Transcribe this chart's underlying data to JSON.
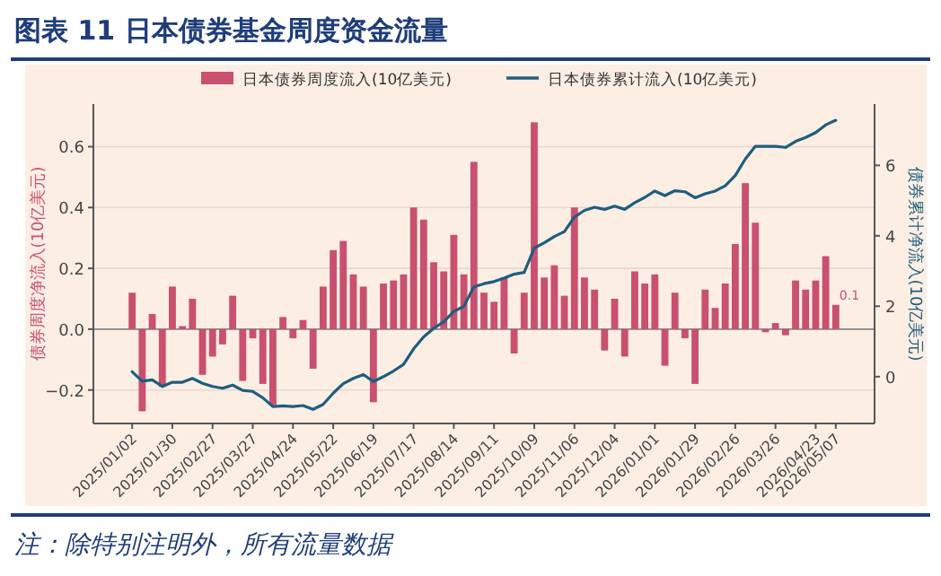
{
  "chart_data": {
    "type": "bar",
    "title": "图表 11  日本债券基金周度资金流量",
    "ylabel": "债券周度净流入(10亿美元)",
    "y2label": "债券累计净流入(10亿美元)",
    "x": [
      "2025-01-02",
      "2025-01-09",
      "2025-01-16",
      "2025-01-23",
      "2025-01-30",
      "2025-02-06",
      "2025-02-13",
      "2025-02-20",
      "2025-02-27",
      "2025-03-06",
      "2025-03-13",
      "2025-03-20",
      "2025-03-27",
      "2025-04-03",
      "2025-04-10",
      "2025-04-17",
      "2025-04-24",
      "2025-05-01",
      "2025-05-08",
      "2025-05-15",
      "2025-05-22",
      "2025-05-29",
      "2025-06-05",
      "2025-06-12",
      "2025-06-19",
      "2025-06-26",
      "2025-07-03",
      "2025-07-10",
      "2025-07-17",
      "2025-07-24",
      "2025-07-31",
      "2025-08-07",
      "2025-08-14",
      "2025-08-21",
      "2025-08-28",
      "2025-09-04",
      "2025-09-11",
      "2025-09-18",
      "2025-09-25",
      "2025-10-02",
      "2025-10-09",
      "2025-10-16",
      "2025-10-23",
      "2025-10-30",
      "2025-11-06",
      "2025-11-13",
      "2025-11-20",
      "2025-11-27",
      "2025-12-04",
      "2025-12-11",
      "2025-12-18",
      "2025-12-25",
      "2026-01-01",
      "2026-01-08",
      "2026-01-15",
      "2026-01-22",
      "2026-01-29",
      "2026-02-05",
      "2026-02-12",
      "2026-02-19",
      "2026-02-26",
      "2026-03-05",
      "2026-03-12",
      "2026-03-19",
      "2026-03-26",
      "2026-04-02",
      "2026-04-09",
      "2026-04-16",
      "2026-04-23",
      "2026-04-30",
      "2026-05-07"
    ],
    "series": [
      {
        "name": "日本债券周度流入(10亿美元)",
        "color": "#c9506f",
        "values": [
          0.12,
          -0.27,
          0.05,
          -0.19,
          0.14,
          0.01,
          0.1,
          -0.15,
          -0.09,
          -0.05,
          0.11,
          -0.17,
          -0.03,
          -0.18,
          -0.25,
          0.04,
          -0.03,
          0.03,
          -0.13,
          0.14,
          0.26,
          0.29,
          0.18,
          0.14,
          -0.24,
          0.15,
          0.16,
          0.18,
          0.4,
          0.36,
          0.22,
          0.19,
          0.31,
          0.18,
          0.55,
          0.12,
          0.09,
          0.17,
          -0.08,
          0.12,
          0.68,
          0.17,
          0.21,
          0.11,
          0.4,
          0.17,
          0.13,
          -0.07,
          0.1,
          -0.09,
          0.19,
          0.15,
          0.18,
          -0.12,
          0.12,
          -0.03,
          -0.18,
          0.13,
          0.07,
          0.15,
          0.28,
          0.48,
          0.35,
          -0.01,
          0.02,
          -0.02,
          0.16,
          0.13,
          0.16,
          0.24,
          0.08
        ],
        "value_labels": [
          null,
          null,
          null,
          null,
          null,
          null,
          null,
          null,
          null,
          null,
          null,
          null,
          null,
          null,
          null,
          null,
          null,
          null,
          null,
          null,
          null,
          null,
          null,
          null,
          null,
          null,
          null,
          null,
          null,
          null,
          null,
          null,
          null,
          null,
          null,
          null,
          null,
          null,
          null,
          null,
          null,
          null,
          null,
          null,
          null,
          null,
          null,
          null,
          null,
          null,
          null,
          null,
          null,
          null,
          null,
          null,
          null,
          null,
          null,
          null,
          null,
          null,
          null,
          null,
          null,
          null,
          null,
          null,
          null,
          null,
          "0.1"
        ]
      },
      {
        "name": "日本债券累计流入(10亿美元)",
        "type": "line",
        "axis": "y2",
        "color": "#1d5e7e",
        "values": [
          0.14,
          -0.13,
          -0.09,
          -0.28,
          -0.16,
          -0.16,
          -0.05,
          -0.19,
          -0.28,
          -0.33,
          -0.24,
          -0.39,
          -0.42,
          -0.6,
          -0.85,
          -0.83,
          -0.85,
          -0.82,
          -0.93,
          -0.79,
          -0.47,
          -0.2,
          -0.05,
          0.06,
          -0.14,
          0,
          0.16,
          0.35,
          0.79,
          1.13,
          1.37,
          1.56,
          1.85,
          2.0,
          2.55,
          2.64,
          2.7,
          2.8,
          2.91,
          2.96,
          3.65,
          3.8,
          3.98,
          4.12,
          4.53,
          4.72,
          4.81,
          4.75,
          4.84,
          4.75,
          4.94,
          5.09,
          5.27,
          5.14,
          5.28,
          5.25,
          5.08,
          5.19,
          5.27,
          5.42,
          5.71,
          6.18,
          6.54,
          6.54,
          6.54,
          6.51,
          6.68,
          6.79,
          6.93,
          7.15,
          7.28
        ]
      }
    ],
    "xlim": [
      "2024-12-06",
      "2026-06-03"
    ],
    "xticks": [
      {
        "value": "2025-01-02",
        "label": "2025/01/02"
      },
      {
        "value": "2025-01-30",
        "label": "2025/01/30"
      },
      {
        "value": "2025-02-27",
        "label": "2025/02/27"
      },
      {
        "value": "2025-03-27",
        "label": "2025/03/27"
      },
      {
        "value": "2025-04-24",
        "label": "2025/04/24"
      },
      {
        "value": "2025-05-22",
        "label": "2025/05/22"
      },
      {
        "value": "2025-06-19",
        "label": "2025/06/19"
      },
      {
        "value": "2025-07-17",
        "label": "2025/07/17"
      },
      {
        "value": "2025-08-14",
        "label": "2025/08/14"
      },
      {
        "value": "2025-09-11",
        "label": "2025/09/11"
      },
      {
        "value": "2025-10-09",
        "label": "2025/10/09"
      },
      {
        "value": "2025-11-06",
        "label": "2025/11/06"
      },
      {
        "value": "2025-12-04",
        "label": "2025/12/04"
      },
      {
        "value": "2026-01-01",
        "label": "2026/01/01"
      },
      {
        "value": "2026-01-29",
        "label": "2026/01/29"
      },
      {
        "value": "2026-02-26",
        "label": "2026/02/26"
      },
      {
        "value": "2026-03-26",
        "label": "2026/03/26"
      },
      {
        "value": "2026-04-23",
        "label": "2026/04/23"
      },
      {
        "value": "2026-05-07",
        "label": "2026/05/07"
      }
    ],
    "ylim": [
      -0.31,
      0.74
    ],
    "yticks": [
      {
        "value": -0.2,
        "label": "−0.2"
      },
      {
        "value": 0,
        "label": "0.0"
      },
      0.2,
      0.4,
      0.6
    ],
    "y2lim": [
      -1.33,
      7.74
    ],
    "y2ticks": [
      0,
      2,
      4,
      6
    ],
    "grid": "y",
    "legend": "top",
    "annotations": [
      "注：除特别注明外，所有流量数据"
    ]
  }
}
